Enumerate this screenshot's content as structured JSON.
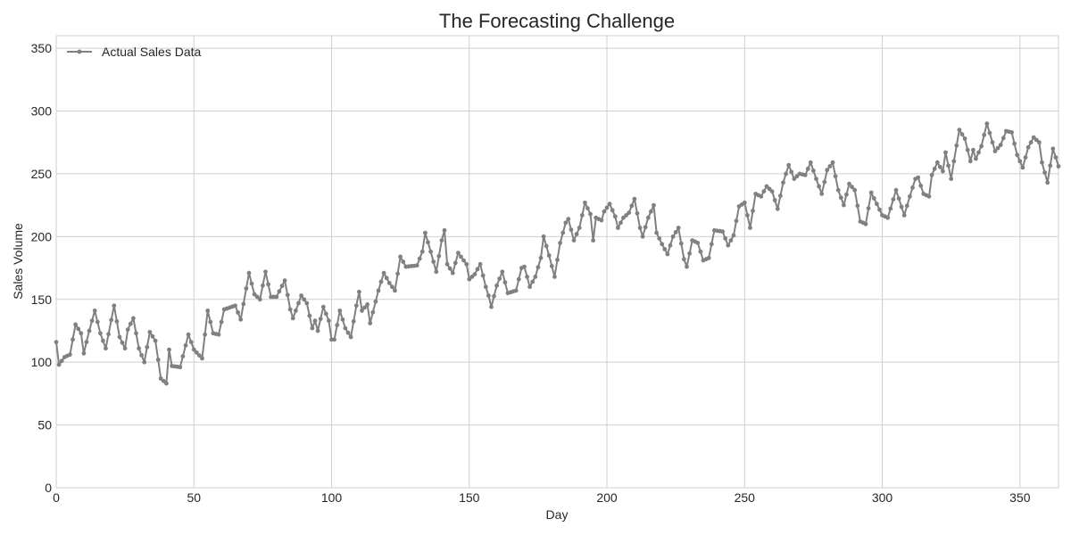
{
  "chart_data": {
    "type": "line",
    "title": "The Forecasting Challenge",
    "xlabel": "Day",
    "ylabel": "Sales Volume",
    "xlim": [
      0,
      364
    ],
    "ylim": [
      0,
      360
    ],
    "x_ticks": [
      0,
      50,
      100,
      150,
      200,
      250,
      300,
      350
    ],
    "y_ticks": [
      0,
      50,
      100,
      150,
      200,
      250,
      300,
      350
    ],
    "grid": true,
    "legend_position": "top-left",
    "colors": {
      "series": "#808080",
      "grid": "#cfcfcf",
      "text": "#262626"
    },
    "series": [
      {
        "name": "Actual Sales Data",
        "anchors": [
          [
            0,
            116
          ],
          [
            1,
            98
          ],
          [
            3,
            104
          ],
          [
            5,
            106
          ],
          [
            7,
            130
          ],
          [
            9,
            123
          ],
          [
            10,
            107
          ],
          [
            12,
            125
          ],
          [
            14,
            141
          ],
          [
            16,
            123
          ],
          [
            18,
            111
          ],
          [
            21,
            145
          ],
          [
            23,
            120
          ],
          [
            25,
            111
          ],
          [
            26,
            126
          ],
          [
            28,
            135
          ],
          [
            30,
            111
          ],
          [
            32,
            100
          ],
          [
            34,
            124
          ],
          [
            36,
            117
          ],
          [
            38,
            87
          ],
          [
            40,
            83
          ],
          [
            41,
            110
          ],
          [
            42,
            97
          ],
          [
            45,
            96
          ],
          [
            48,
            122
          ],
          [
            50,
            110
          ],
          [
            53,
            103
          ],
          [
            55,
            141
          ],
          [
            57,
            123
          ],
          [
            59,
            122
          ],
          [
            61,
            142
          ],
          [
            65,
            145
          ],
          [
            67,
            134
          ],
          [
            70,
            171
          ],
          [
            72,
            154
          ],
          [
            74,
            150
          ],
          [
            76,
            172
          ],
          [
            78,
            152
          ],
          [
            80,
            152
          ],
          [
            83,
            165
          ],
          [
            85,
            142
          ],
          [
            86,
            135
          ],
          [
            89,
            153
          ],
          [
            91,
            147
          ],
          [
            93,
            127
          ],
          [
            94,
            133
          ],
          [
            95,
            125
          ],
          [
            97,
            144
          ],
          [
            99,
            133
          ],
          [
            100,
            118
          ],
          [
            101,
            118
          ],
          [
            103,
            141
          ],
          [
            105,
            127
          ],
          [
            107,
            120
          ],
          [
            109,
            145
          ],
          [
            110,
            156
          ],
          [
            111,
            141
          ],
          [
            113,
            146
          ],
          [
            114,
            131
          ],
          [
            117,
            157
          ],
          [
            119,
            171
          ],
          [
            121,
            163
          ],
          [
            123,
            157
          ],
          [
            125,
            184
          ],
          [
            127,
            176
          ],
          [
            131,
            177
          ],
          [
            133,
            188
          ],
          [
            134,
            203
          ],
          [
            136,
            188
          ],
          [
            138,
            172
          ],
          [
            140,
            197
          ],
          [
            141,
            205
          ],
          [
            142,
            178
          ],
          [
            144,
            171
          ],
          [
            146,
            187
          ],
          [
            149,
            178
          ],
          [
            150,
            166
          ],
          [
            152,
            170
          ],
          [
            154,
            178
          ],
          [
            156,
            160
          ],
          [
            157,
            153
          ],
          [
            158,
            144
          ],
          [
            160,
            161
          ],
          [
            162,
            172
          ],
          [
            164,
            155
          ],
          [
            167,
            157
          ],
          [
            169,
            175
          ],
          [
            170,
            176
          ],
          [
            172,
            160
          ],
          [
            174,
            168
          ],
          [
            176,
            183
          ],
          [
            177,
            200
          ],
          [
            179,
            185
          ],
          [
            181,
            168
          ],
          [
            183,
            195
          ],
          [
            185,
            211
          ],
          [
            186,
            214
          ],
          [
            188,
            197
          ],
          [
            190,
            207
          ],
          [
            192,
            227
          ],
          [
            194,
            218
          ],
          [
            195,
            197
          ],
          [
            196,
            215
          ],
          [
            198,
            213
          ],
          [
            199,
            220
          ],
          [
            201,
            226
          ],
          [
            203,
            216
          ],
          [
            204,
            207
          ],
          [
            206,
            215
          ],
          [
            208,
            219
          ],
          [
            210,
            230
          ],
          [
            212,
            207
          ],
          [
            213,
            200
          ],
          [
            215,
            215
          ],
          [
            217,
            225
          ],
          [
            218,
            203
          ],
          [
            220,
            194
          ],
          [
            222,
            186
          ],
          [
            224,
            200
          ],
          [
            226,
            207
          ],
          [
            228,
            182
          ],
          [
            229,
            176
          ],
          [
            231,
            197
          ],
          [
            233,
            195
          ],
          [
            235,
            181
          ],
          [
            237,
            183
          ],
          [
            239,
            205
          ],
          [
            242,
            204
          ],
          [
            244,
            193
          ],
          [
            246,
            201
          ],
          [
            248,
            224
          ],
          [
            250,
            227
          ],
          [
            252,
            207
          ],
          [
            254,
            234
          ],
          [
            256,
            232
          ],
          [
            258,
            240
          ],
          [
            260,
            236
          ],
          [
            262,
            222
          ],
          [
            264,
            243
          ],
          [
            266,
            257
          ],
          [
            268,
            246
          ],
          [
            270,
            250
          ],
          [
            272,
            249
          ],
          [
            274,
            259
          ],
          [
            276,
            246
          ],
          [
            278,
            234
          ],
          [
            280,
            253
          ],
          [
            282,
            259
          ],
          [
            284,
            237
          ],
          [
            286,
            225
          ],
          [
            288,
            242
          ],
          [
            290,
            237
          ],
          [
            292,
            212
          ],
          [
            294,
            210
          ],
          [
            296,
            235
          ],
          [
            298,
            226
          ],
          [
            300,
            217
          ],
          [
            302,
            215
          ],
          [
            305,
            237
          ],
          [
            308,
            217
          ],
          [
            310,
            232
          ],
          [
            312,
            246
          ],
          [
            313,
            247
          ],
          [
            315,
            234
          ],
          [
            317,
            232
          ],
          [
            318,
            249
          ],
          [
            320,
            259
          ],
          [
            322,
            252
          ],
          [
            323,
            267
          ],
          [
            325,
            246
          ],
          [
            326,
            260
          ],
          [
            328,
            285
          ],
          [
            330,
            278
          ],
          [
            332,
            260
          ],
          [
            333,
            269
          ],
          [
            334,
            262
          ],
          [
            336,
            272
          ],
          [
            338,
            290
          ],
          [
            340,
            275
          ],
          [
            341,
            268
          ],
          [
            343,
            273
          ],
          [
            345,
            284
          ],
          [
            347,
            283
          ],
          [
            349,
            265
          ],
          [
            350,
            260
          ],
          [
            351,
            255
          ],
          [
            353,
            271
          ],
          [
            355,
            279
          ],
          [
            357,
            275
          ],
          [
            358,
            259
          ],
          [
            360,
            243
          ],
          [
            362,
            270
          ],
          [
            364,
            256
          ]
        ]
      }
    ],
    "legend": [
      "Actual Sales Data"
    ]
  }
}
